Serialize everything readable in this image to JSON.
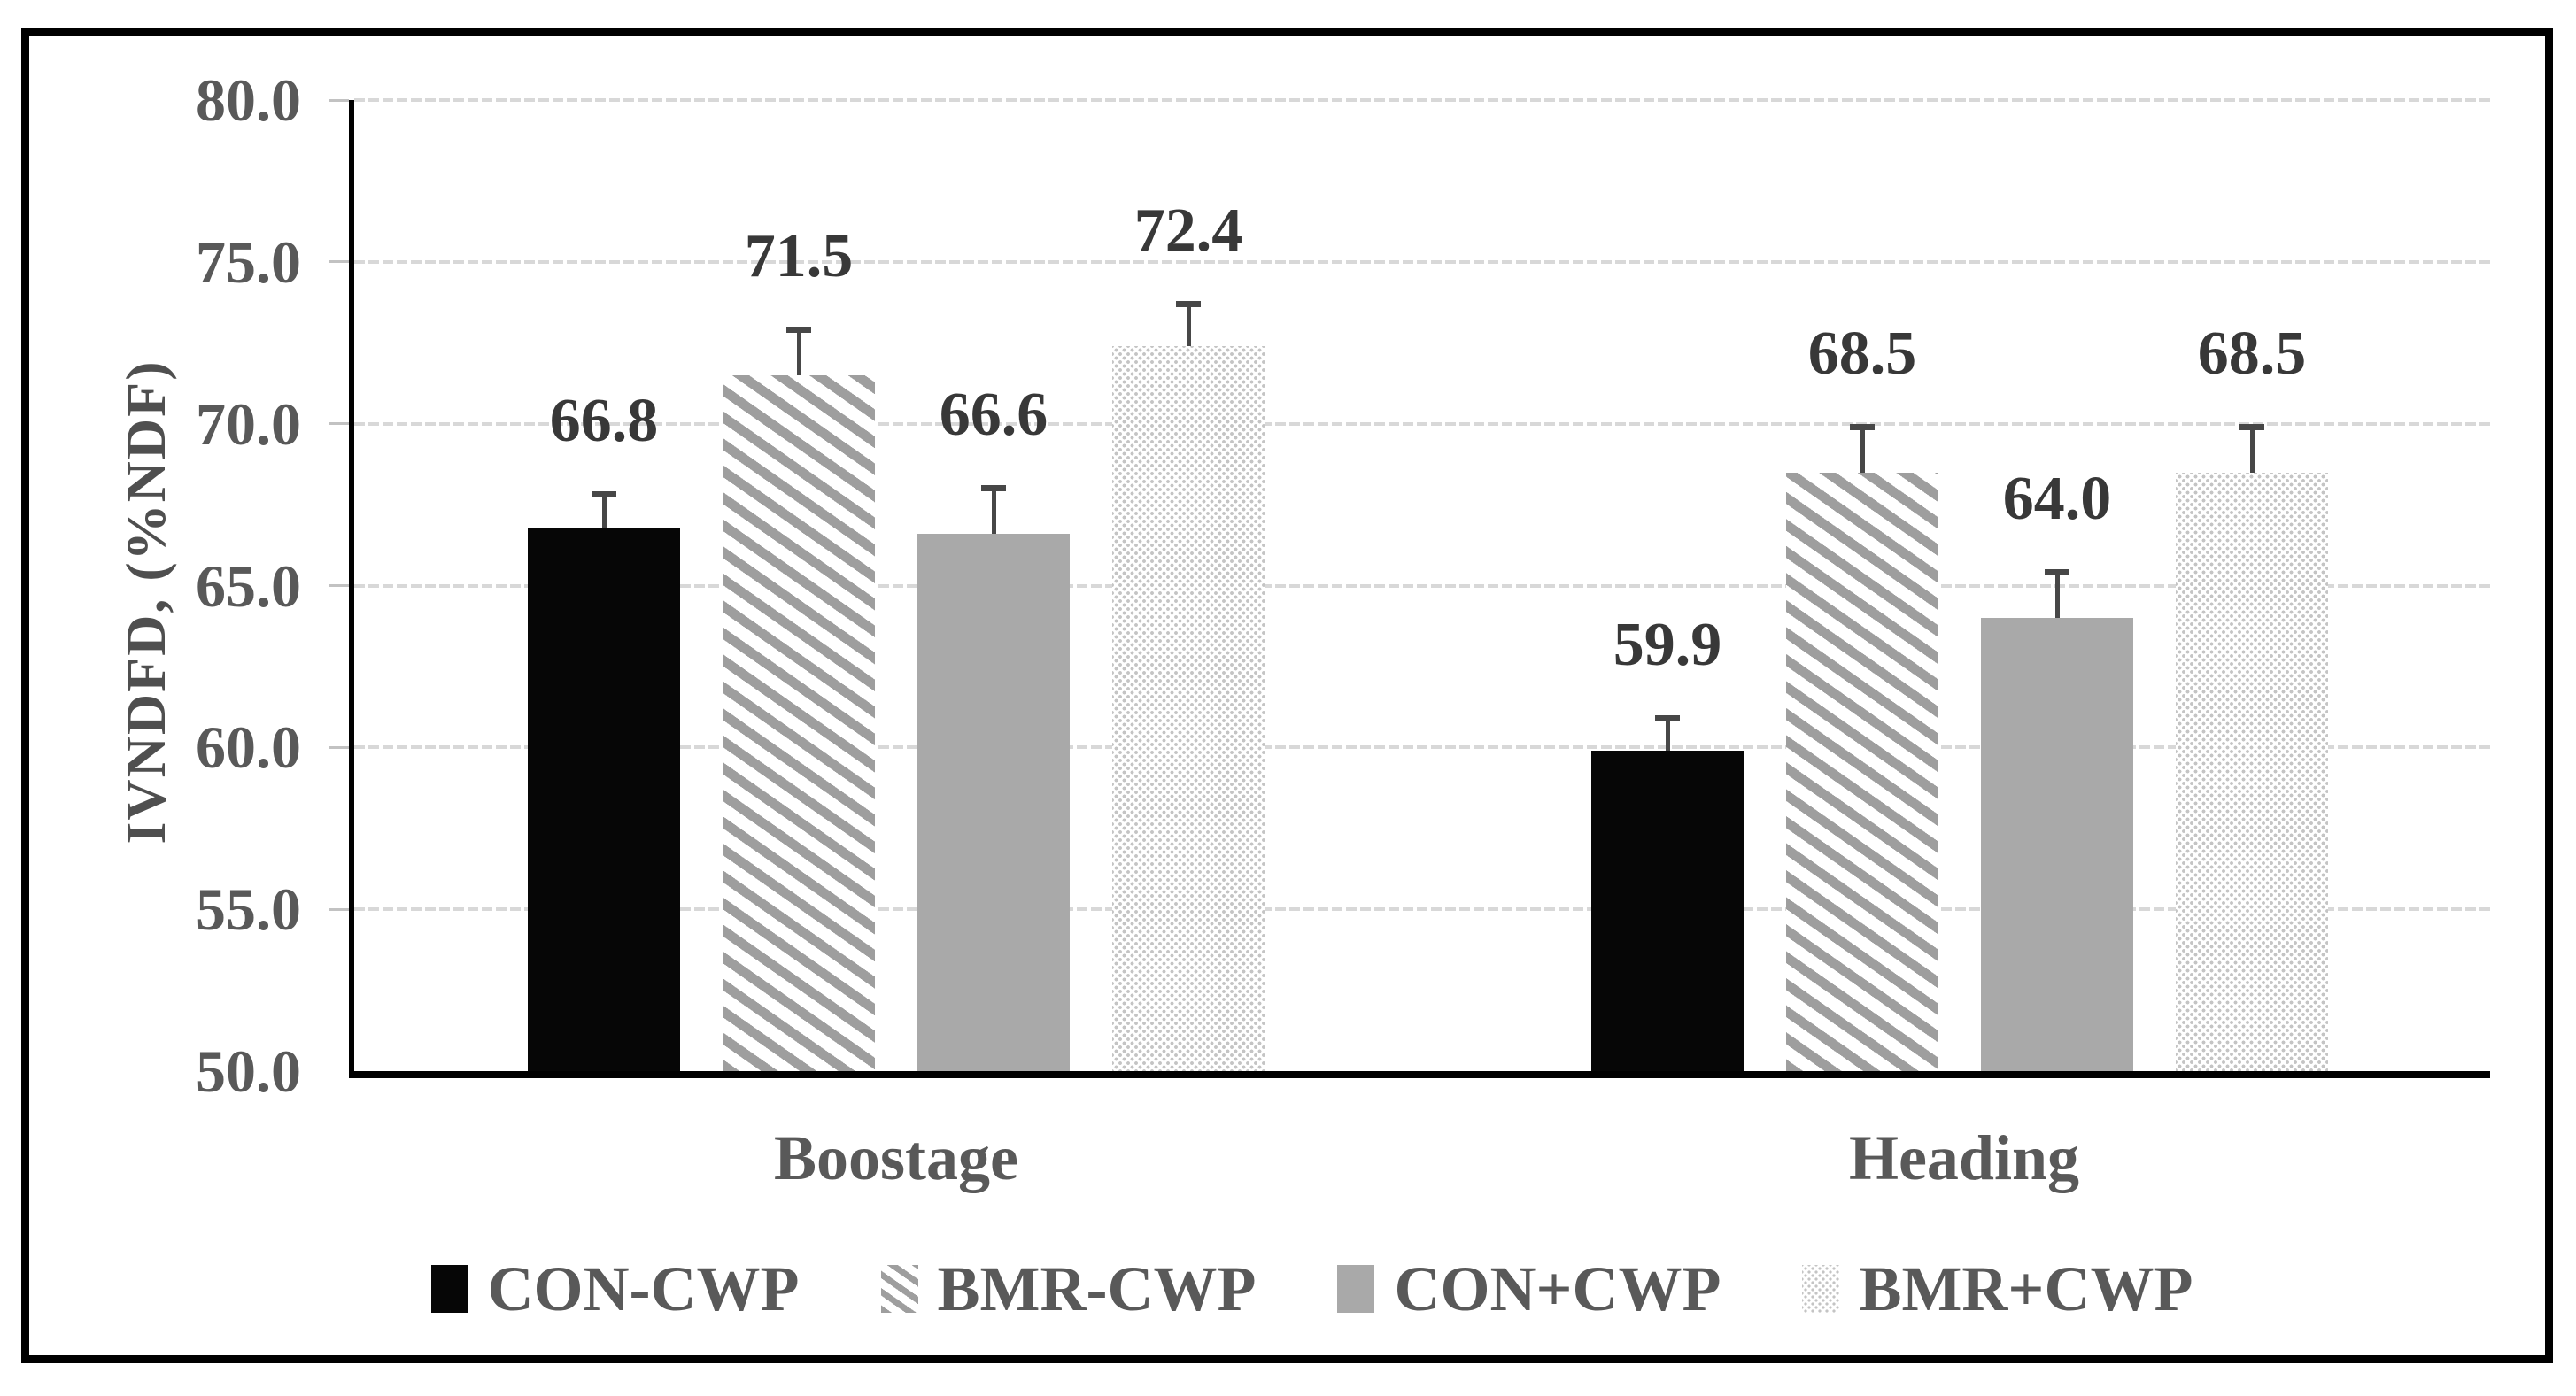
{
  "chart_data": {
    "type": "bar",
    "title": "",
    "xlabel": "",
    "ylabel": "IVNDFD, (%NDF)",
    "categories": [
      "Boostage",
      "Heading"
    ],
    "series": [
      {
        "name": "CON-CWP",
        "pattern": "solid-black",
        "values": [
          66.8,
          59.9
        ],
        "errors_plus": [
          1.1,
          1.1
        ]
      },
      {
        "name": "BMR-CWP",
        "pattern": "diagonal-hatch",
        "values": [
          71.5,
          68.5
        ],
        "errors_plus": [
          1.5,
          1.5
        ]
      },
      {
        "name": "CON+CWP",
        "pattern": "solid-gray",
        "values": [
          66.6,
          64.0
        ],
        "errors_plus": [
          1.5,
          1.5
        ]
      },
      {
        "name": "BMR+CWP",
        "pattern": "dotted",
        "values": [
          72.4,
          68.5
        ],
        "errors_plus": [
          1.4,
          1.5
        ]
      }
    ],
    "data_labels": [
      [
        "66.8",
        "59.9"
      ],
      [
        "71.5",
        "68.5"
      ],
      [
        "66.6",
        "64.0"
      ],
      [
        "72.4",
        "68.5"
      ]
    ],
    "ylim": [
      50,
      80
    ],
    "ytick_interval": 5,
    "ytick_labels": [
      "80.0",
      "75.0",
      "70.0",
      "65.0",
      "60.0",
      "55.0",
      "50.0"
    ],
    "grid": true,
    "legend_position": "bottom",
    "legend": [
      "CON-CWP",
      "BMR-CWP",
      "CON+CWP",
      "BMR+CWP"
    ]
  },
  "colors": {
    "frame_border": "#000000",
    "axis_line": "#000000",
    "gridline": "#d8d8d8",
    "tick_label": "#595959",
    "data_label": "#383838",
    "category_label": "#595959",
    "legend_label": "#595959",
    "axis_title": "#4f4f4f",
    "error_bar": "#474747",
    "bar_black": "#060606",
    "bar_gray": "#a9a9a9",
    "hatch_stripe": "#9e9e9e",
    "dot_fill": "#c4c4c4"
  }
}
